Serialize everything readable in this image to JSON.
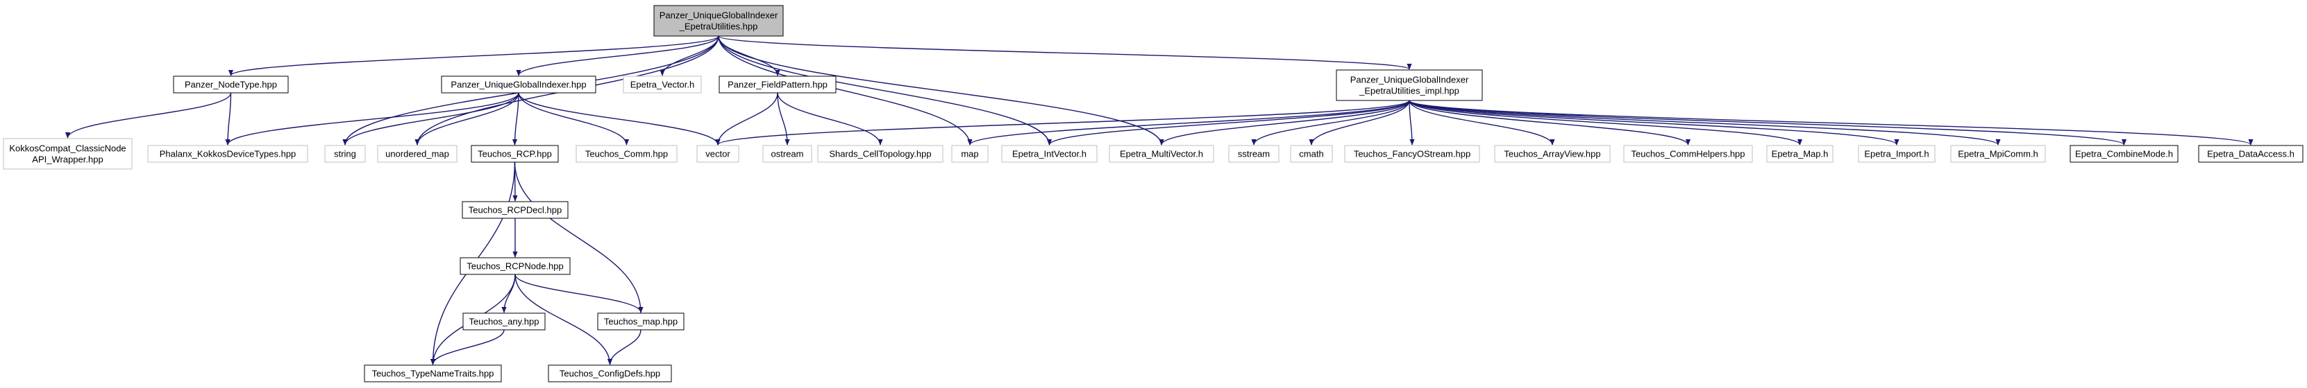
{
  "nodes": {
    "root": {
      "lines": [
        "Panzer_UniqueGlobalIndexer",
        "_EpetraUtilities.hpp"
      ],
      "style": "root"
    },
    "nodetype": {
      "lines": [
        "Panzer_NodeType.hpp"
      ],
      "style": "doc"
    },
    "ugi": {
      "lines": [
        "Panzer_UniqueGlobalIndexer.hpp"
      ],
      "style": "doc"
    },
    "epetra_vector": {
      "lines": [
        "Epetra_Vector.h"
      ],
      "style": "ext"
    },
    "fieldpattern": {
      "lines": [
        "Panzer_FieldPattern.hpp"
      ],
      "style": "doc"
    },
    "impl": {
      "lines": [
        "Panzer_UniqueGlobalIndexer",
        "_EpetraUtilities_impl.hpp"
      ],
      "style": "doc"
    },
    "kokkoscompat": {
      "lines": [
        "KokkosCompat_ClassicNode",
        "API_Wrapper.hpp"
      ],
      "style": "ext"
    },
    "phalanx": {
      "lines": [
        "Phalanx_KokkosDeviceTypes.hpp"
      ],
      "style": "ext"
    },
    "string": {
      "lines": [
        "string"
      ],
      "style": "ext"
    },
    "unordered_map": {
      "lines": [
        "unordered_map"
      ],
      "style": "ext"
    },
    "teuchos_rcp": {
      "lines": [
        "Teuchos_RCP.hpp"
      ],
      "style": "doc"
    },
    "teuchos_comm": {
      "lines": [
        "Teuchos_Comm.hpp"
      ],
      "style": "ext"
    },
    "vector": {
      "lines": [
        "vector"
      ],
      "style": "ext"
    },
    "ostream": {
      "lines": [
        "ostream"
      ],
      "style": "ext"
    },
    "shards": {
      "lines": [
        "Shards_CellTopology.hpp"
      ],
      "style": "ext"
    },
    "map": {
      "lines": [
        "map"
      ],
      "style": "ext"
    },
    "epetra_intvector": {
      "lines": [
        "Epetra_IntVector.h"
      ],
      "style": "ext"
    },
    "epetra_multivector": {
      "lines": [
        "Epetra_MultiVector.h"
      ],
      "style": "ext"
    },
    "sstream": {
      "lines": [
        "sstream"
      ],
      "style": "ext"
    },
    "cmath": {
      "lines": [
        "cmath"
      ],
      "style": "ext"
    },
    "fancyostream": {
      "lines": [
        "Teuchos_FancyOStream.hpp"
      ],
      "style": "ext"
    },
    "arrayview": {
      "lines": [
        "Teuchos_ArrayView.hpp"
      ],
      "style": "ext"
    },
    "commhelpers": {
      "lines": [
        "Teuchos_CommHelpers.hpp"
      ],
      "style": "ext"
    },
    "epetra_map": {
      "lines": [
        "Epetra_Map.h"
      ],
      "style": "ext"
    },
    "epetra_import": {
      "lines": [
        "Epetra_Import.h"
      ],
      "style": "ext"
    },
    "epetra_mpicomm": {
      "lines": [
        "Epetra_MpiComm.h"
      ],
      "style": "ext"
    },
    "epetra_combinemode": {
      "lines": [
        "Epetra_CombineMode.h"
      ],
      "style": "doc"
    },
    "epetra_dataaccess": {
      "lines": [
        "Epetra_DataAccess.h"
      ],
      "style": "doc"
    },
    "rcpdecl": {
      "lines": [
        "Teuchos_RCPDecl.hpp"
      ],
      "style": "doc"
    },
    "rcpnode": {
      "lines": [
        "Teuchos_RCPNode.hpp"
      ],
      "style": "doc"
    },
    "teuchos_any": {
      "lines": [
        "Teuchos_any.hpp"
      ],
      "style": "doc"
    },
    "teuchos_map": {
      "lines": [
        "Teuchos_map.hpp"
      ],
      "style": "doc"
    },
    "typenametraits": {
      "lines": [
        "Teuchos_TypeNameTraits.hpp"
      ],
      "style": "doc"
    },
    "configdefs": {
      "lines": [
        "Teuchos_ConfigDefs.hpp"
      ],
      "style": "doc"
    }
  },
  "edges": [
    [
      "root",
      "nodetype"
    ],
    [
      "root",
      "ugi"
    ],
    [
      "root",
      "epetra_vector"
    ],
    [
      "root",
      "fieldpattern"
    ],
    [
      "root",
      "impl"
    ],
    [
      "root",
      "string"
    ],
    [
      "root",
      "unordered_map"
    ],
    [
      "root",
      "map"
    ],
    [
      "root",
      "epetra_intvector"
    ],
    [
      "root",
      "epetra_multivector"
    ],
    [
      "nodetype",
      "kokkoscompat"
    ],
    [
      "nodetype",
      "phalanx"
    ],
    [
      "ugi",
      "phalanx"
    ],
    [
      "ugi",
      "string"
    ],
    [
      "ugi",
      "unordered_map"
    ],
    [
      "ugi",
      "teuchos_rcp"
    ],
    [
      "ugi",
      "teuchos_comm"
    ],
    [
      "ugi",
      "vector"
    ],
    [
      "fieldpattern",
      "vector"
    ],
    [
      "fieldpattern",
      "ostream"
    ],
    [
      "fieldpattern",
      "shards"
    ],
    [
      "impl",
      "vector"
    ],
    [
      "impl",
      "map"
    ],
    [
      "impl",
      "epetra_intvector"
    ],
    [
      "impl",
      "epetra_multivector"
    ],
    [
      "impl",
      "sstream"
    ],
    [
      "impl",
      "cmath"
    ],
    [
      "impl",
      "fancyostream"
    ],
    [
      "impl",
      "arrayview"
    ],
    [
      "impl",
      "commhelpers"
    ],
    [
      "impl",
      "epetra_map"
    ],
    [
      "impl",
      "epetra_import"
    ],
    [
      "impl",
      "epetra_mpicomm"
    ],
    [
      "impl",
      "epetra_combinemode"
    ],
    [
      "impl",
      "epetra_dataaccess"
    ],
    [
      "teuchos_rcp",
      "rcpdecl"
    ],
    [
      "teuchos_rcp",
      "typenametraits"
    ],
    [
      "teuchos_rcp",
      "teuchos_map"
    ],
    [
      "rcpdecl",
      "rcpnode"
    ],
    [
      "rcpnode",
      "teuchos_any"
    ],
    [
      "rcpnode",
      "teuchos_map"
    ],
    [
      "rcpnode",
      "typenametraits"
    ],
    [
      "rcpnode",
      "configdefs"
    ],
    [
      "teuchos_any",
      "typenametraits"
    ],
    [
      "teuchos_map",
      "configdefs"
    ]
  ],
  "colors": {
    "edge": "#191970",
    "root_fill": "#bfbfbf",
    "doc_border": "#000000",
    "ext_border": "#bfbfbf",
    "fill": "#ffffff",
    "text": "#000000"
  }
}
